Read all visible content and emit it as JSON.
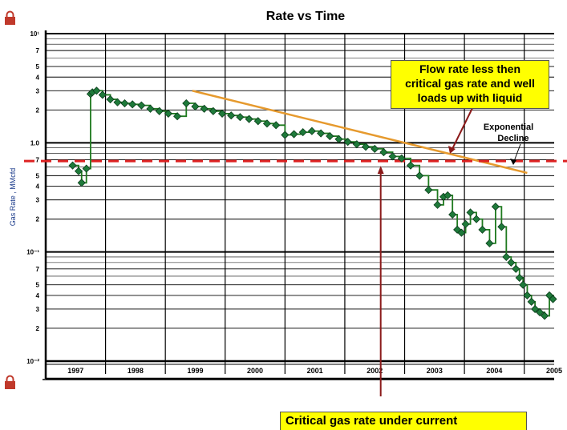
{
  "chart_data": {
    "type": "line",
    "title": "Rate vs Time",
    "xlabel": "",
    "ylabel": "Gas Rate , MMcfd",
    "y_scale": "log",
    "ylim": [
      0.01,
      10
    ],
    "xlim": [
      1997.0,
      2005.5
    ],
    "y_tick_labels": [
      "10¹",
      "7",
      "5",
      "4",
      "3",
      "2",
      "1.0",
      "7",
      "5",
      "4",
      "3",
      "2",
      "10⁻¹",
      "7",
      "5",
      "4",
      "3",
      "2",
      "10⁻²"
    ],
    "x_tick_labels": [
      "1997",
      "1998",
      "1999",
      "2000",
      "2001",
      "2002",
      "2003",
      "2004",
      "2005"
    ],
    "grid": true,
    "series": [
      {
        "color": "#1f7a1f",
        "marker_color": "#1e7a3a",
        "x": [
          1997.45,
          1997.55,
          1997.6,
          1997.68,
          1997.75,
          1997.78,
          1997.85,
          1997.95,
          1998.08,
          1998.2,
          1998.32,
          1998.45,
          1998.6,
          1998.75,
          1998.9,
          1999.05,
          1999.2,
          1999.35,
          1999.5,
          1999.65,
          1999.8,
          1999.95,
          2000.1,
          2000.25,
          2000.4,
          2000.55,
          2000.7,
          2000.85,
          2001.0,
          2001.15,
          2001.3,
          2001.45,
          2001.6,
          2001.75,
          2001.9,
          2002.05,
          2002.2,
          2002.35,
          2002.5,
          2002.65,
          2002.8,
          2002.95,
          2003.1,
          2003.25,
          2003.4,
          2003.55,
          2003.65,
          2003.72,
          2003.8,
          2003.88,
          2003.95,
          2004.02,
          2004.1,
          2004.2,
          2004.3,
          2004.42,
          2004.52,
          2004.62,
          2004.7,
          2004.78,
          2004.86,
          2004.92,
          2004.98,
          2005.05,
          2005.12,
          2005.18,
          2005.26,
          2005.34,
          2005.42,
          2005.48
        ],
        "y": [
          0.62,
          0.55,
          0.43,
          0.58,
          2.8,
          2.9,
          3.0,
          2.75,
          2.5,
          2.35,
          2.3,
          2.25,
          2.2,
          2.05,
          1.95,
          1.85,
          1.75,
          2.3,
          2.15,
          2.05,
          1.95,
          1.85,
          1.78,
          1.72,
          1.65,
          1.58,
          1.5,
          1.45,
          1.18,
          1.2,
          1.25,
          1.28,
          1.22,
          1.15,
          1.08,
          1.02,
          0.97,
          0.92,
          0.88,
          0.82,
          0.75,
          0.72,
          0.62,
          0.5,
          0.37,
          0.27,
          0.32,
          0.33,
          0.22,
          0.16,
          0.15,
          0.18,
          0.23,
          0.2,
          0.16,
          0.12,
          0.26,
          0.17,
          0.09,
          0.08,
          0.07,
          0.058,
          0.05,
          0.04,
          0.035,
          0.03,
          0.028,
          0.026,
          0.04,
          0.037
        ]
      }
    ],
    "exponential_decline": {
      "x": [
        1999.45,
        2005.05
      ],
      "y": [
        3.0,
        0.53
      ],
      "color": "#e69a2e",
      "label": "Exponential\nDecline"
    },
    "critical_rate": {
      "y": 0.68,
      "color": "#dd2222"
    },
    "critical_arrow": {
      "x": 2002.6,
      "color": "#8b1a1a"
    }
  },
  "annotations": {
    "flow_rate_line1": "Flow rate less then",
    "flow_rate_line2": "critical gas rate and well",
    "flow_rate_line3": "loads up with liquid",
    "exponential_decline_line1": "Exponential",
    "exponential_decline_line2": "Decline",
    "critical_gas_rate": "Critical gas rate under current"
  },
  "colors": {
    "lock_icon": "#c0392b",
    "axis": "#000000",
    "grid": "#000000"
  }
}
